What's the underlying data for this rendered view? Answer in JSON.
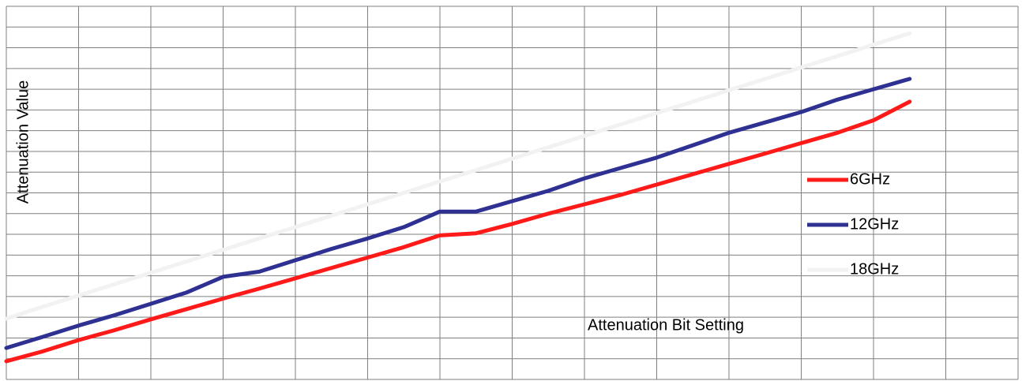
{
  "chart_data": {
    "type": "line",
    "x_label": "Attenuation Bit Setting",
    "y_label": "Attenuation Value",
    "x": [
      0,
      0.5,
      1,
      1.5,
      2,
      2.5,
      3,
      3.5,
      4,
      4.5,
      5,
      5.5,
      6,
      6.5,
      7,
      7.5,
      8,
      8.5,
      9,
      9.5,
      10,
      10.5,
      11,
      11.5,
      12,
      12.5
    ],
    "series": [
      {
        "name": "6GHz",
        "color": "#ff1a1a",
        "values": [
          0.88,
          1.35,
          1.9,
          2.38,
          2.9,
          3.4,
          3.9,
          4.38,
          4.88,
          5.38,
          5.88,
          6.38,
          6.95,
          7.05,
          7.5,
          8.0,
          8.45,
          8.9,
          9.4,
          9.9,
          10.4,
          10.9,
          11.4,
          11.9,
          12.5,
          13.4
        ]
      },
      {
        "name": "12GHz",
        "color": "#2e3192",
        "values": [
          1.52,
          2.05,
          2.6,
          3.1,
          3.65,
          4.2,
          4.95,
          5.2,
          5.75,
          6.3,
          6.8,
          7.35,
          8.1,
          8.1,
          8.6,
          9.1,
          9.7,
          10.2,
          10.7,
          11.3,
          11.9,
          12.4,
          12.9,
          13.5,
          14.0,
          14.5
        ]
      },
      {
        "name": "18GHz",
        "color": "#f2f2f2",
        "values": [
          2.93,
          3.5,
          4.05,
          4.6,
          5.15,
          5.7,
          6.25,
          6.8,
          7.35,
          7.9,
          8.45,
          9.0,
          9.55,
          10.1,
          10.65,
          11.2,
          11.75,
          12.3,
          12.85,
          13.4,
          13.95,
          14.5,
          15.05,
          15.6,
          16.15,
          16.7
        ]
      }
    ],
    "xlim": [
      0,
      14
    ],
    "ylim": [
      0,
      18
    ],
    "xticks": [
      0,
      1,
      2,
      3,
      4,
      5,
      6,
      7,
      8,
      9,
      10,
      11,
      12,
      13,
      14
    ],
    "yticks": [
      0,
      1,
      2,
      3,
      4,
      5,
      6,
      7,
      8,
      9,
      10,
      11,
      12,
      13,
      14,
      15,
      16,
      17,
      18
    ],
    "grid": true
  }
}
